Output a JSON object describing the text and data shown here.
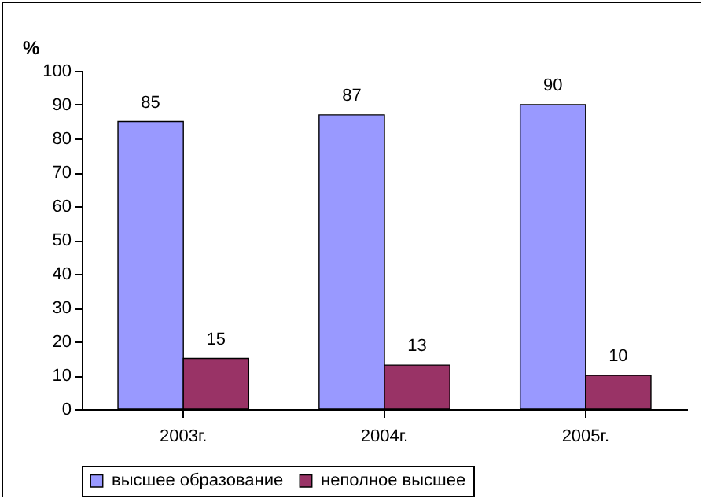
{
  "chart_data": {
    "type": "bar",
    "ylabel": "%",
    "categories": [
      "2003г.",
      "2004г.",
      "2005г."
    ],
    "series": [
      {
        "name": "высшее образование",
        "color": "#9999ff",
        "values": [
          85,
          87,
          90
        ]
      },
      {
        "name": "неполное высшее",
        "color": "#993366",
        "values": [
          15,
          13,
          10
        ]
      }
    ],
    "ylim": [
      0,
      100
    ],
    "yticks": [
      0,
      10,
      20,
      30,
      40,
      50,
      60,
      70,
      80,
      90,
      100
    ],
    "grid": false,
    "legend": "bottom",
    "data_labels": true
  }
}
